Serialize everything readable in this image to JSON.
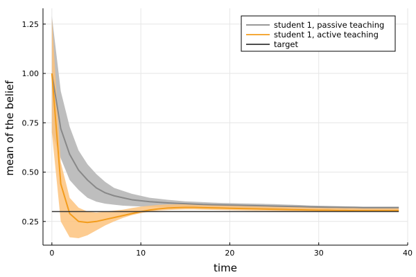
{
  "chart_data": {
    "type": "line",
    "xlabel": "time",
    "ylabel": "mean of the belief",
    "xlim": [
      -1,
      40
    ],
    "ylim": [
      0.13,
      1.33
    ],
    "xticks": [
      0,
      10,
      20,
      30,
      40
    ],
    "yticks": [
      0.25,
      0.5,
      0.75,
      1.0,
      1.25
    ],
    "ytick_labels": [
      "0.25",
      "0.50",
      "0.75",
      "1.00",
      "1.25"
    ],
    "grid": true,
    "legend_position": "top-right",
    "series": [
      {
        "name": "student 1, passive teaching",
        "color": "#888888",
        "band_color": "#bbbbbb",
        "x": [
          0,
          1,
          2,
          3,
          4,
          5,
          6,
          7,
          8,
          9,
          10,
          11,
          12,
          13,
          14,
          15,
          16,
          17,
          18,
          19,
          20,
          21,
          22,
          23,
          24,
          25,
          26,
          27,
          28,
          29,
          30,
          31,
          32,
          33,
          34,
          35,
          36,
          37,
          38,
          39
        ],
        "y": [
          1.0,
          0.72,
          0.59,
          0.51,
          0.46,
          0.42,
          0.395,
          0.38,
          0.37,
          0.36,
          0.355,
          0.35,
          0.347,
          0.344,
          0.342,
          0.34,
          0.338,
          0.336,
          0.335,
          0.334,
          0.333,
          0.332,
          0.331,
          0.33,
          0.329,
          0.328,
          0.327,
          0.326,
          0.325,
          0.324,
          0.323,
          0.322,
          0.322,
          0.321,
          0.321,
          0.32,
          0.32,
          0.32,
          0.32,
          0.32
        ],
        "lower": [
          0.7,
          0.57,
          0.46,
          0.41,
          0.37,
          0.35,
          0.34,
          0.335,
          0.33,
          0.328,
          0.326,
          0.325,
          0.324,
          0.323,
          0.322,
          0.321,
          0.32,
          0.319,
          0.318,
          0.318,
          0.317,
          0.317,
          0.316,
          0.316,
          0.315,
          0.315,
          0.314,
          0.314,
          0.313,
          0.313,
          0.312,
          0.312,
          0.311,
          0.311,
          0.31,
          0.31,
          0.31,
          0.31,
          0.31,
          0.31
        ],
        "upper": [
          1.29,
          0.91,
          0.73,
          0.61,
          0.54,
          0.49,
          0.45,
          0.42,
          0.405,
          0.39,
          0.38,
          0.37,
          0.365,
          0.36,
          0.356,
          0.352,
          0.35,
          0.348,
          0.346,
          0.344,
          0.343,
          0.342,
          0.341,
          0.34,
          0.339,
          0.338,
          0.336,
          0.335,
          0.333,
          0.331,
          0.33,
          0.329,
          0.328,
          0.327,
          0.326,
          0.325,
          0.325,
          0.325,
          0.325,
          0.325
        ]
      },
      {
        "name": "student 1, active teaching",
        "color": "#f39c1b",
        "band_color": "#fdc37e",
        "x": [
          0,
          1,
          2,
          3,
          4,
          5,
          6,
          7,
          8,
          9,
          10,
          11,
          12,
          13,
          14,
          15,
          16,
          17,
          18,
          19,
          20,
          21,
          22,
          23,
          24,
          25,
          26,
          27,
          28,
          29,
          30,
          31,
          32,
          33,
          34,
          35,
          36,
          37,
          38,
          39
        ],
        "y": [
          1.0,
          0.44,
          0.29,
          0.25,
          0.245,
          0.25,
          0.26,
          0.27,
          0.28,
          0.29,
          0.3,
          0.308,
          0.314,
          0.318,
          0.32,
          0.321,
          0.321,
          0.32,
          0.319,
          0.318,
          0.317,
          0.316,
          0.315,
          0.314,
          0.313,
          0.312,
          0.311,
          0.31,
          0.309,
          0.308,
          0.307,
          0.307,
          0.306,
          0.306,
          0.305,
          0.305,
          0.305,
          0.305,
          0.305,
          0.305
        ],
        "lower": [
          0.7,
          0.25,
          0.17,
          0.165,
          0.18,
          0.205,
          0.23,
          0.25,
          0.268,
          0.282,
          0.292,
          0.3,
          0.305,
          0.308,
          0.31,
          0.311,
          0.311,
          0.31,
          0.309,
          0.308,
          0.307,
          0.306,
          0.305,
          0.304,
          0.304,
          0.303,
          0.302,
          0.302,
          0.301,
          0.3,
          0.3,
          0.3,
          0.3,
          0.3,
          0.3,
          0.3,
          0.3,
          0.3,
          0.3,
          0.3
        ],
        "upper": [
          1.28,
          0.55,
          0.37,
          0.32,
          0.3,
          0.295,
          0.3,
          0.305,
          0.31,
          0.318,
          0.325,
          0.33,
          0.334,
          0.336,
          0.337,
          0.337,
          0.336,
          0.335,
          0.334,
          0.333,
          0.332,
          0.331,
          0.33,
          0.329,
          0.328,
          0.327,
          0.326,
          0.325,
          0.324,
          0.323,
          0.322,
          0.321,
          0.32,
          0.319,
          0.318,
          0.318,
          0.317,
          0.317,
          0.317,
          0.317
        ]
      },
      {
        "name": "target",
        "color": "#333333",
        "x": [
          0,
          39
        ],
        "y": [
          0.3,
          0.3
        ]
      }
    ]
  }
}
